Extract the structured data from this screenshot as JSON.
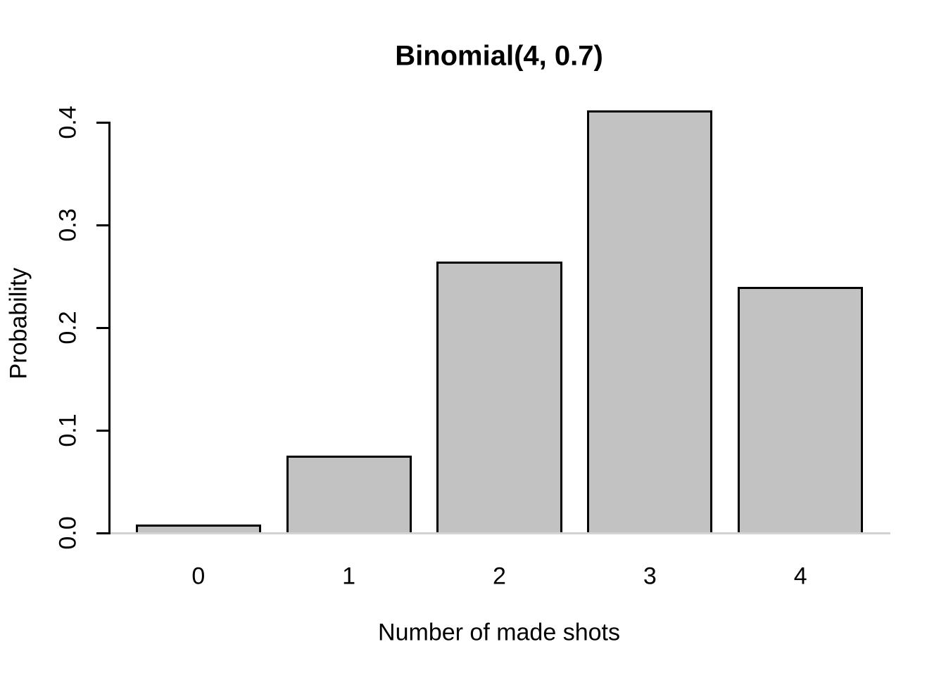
{
  "chart_data": {
    "type": "bar",
    "title": "Binomial(4, 0.7)",
    "xlabel": "Number of made shots",
    "ylabel": "Probability",
    "categories": [
      "0",
      "1",
      "2",
      "3",
      "4"
    ],
    "values": [
      0.0081,
      0.0756,
      0.2646,
      0.4116,
      0.2401
    ],
    "ylim": [
      0,
      0.4
    ],
    "yticks": [
      0.0,
      0.1,
      0.2,
      0.3,
      0.4
    ],
    "ytick_labels": [
      "0.0",
      "0.1",
      "0.2",
      "0.3",
      "0.4"
    ],
    "grid": false,
    "legend": false,
    "bar_space_ratio": 0.2,
    "colors": {
      "bar_fill": "#c2c2c2",
      "bar_border": "#000000",
      "axis": "#000000",
      "baseline": "#d3d3d3",
      "text": "#000000",
      "background": "#ffffff"
    }
  }
}
